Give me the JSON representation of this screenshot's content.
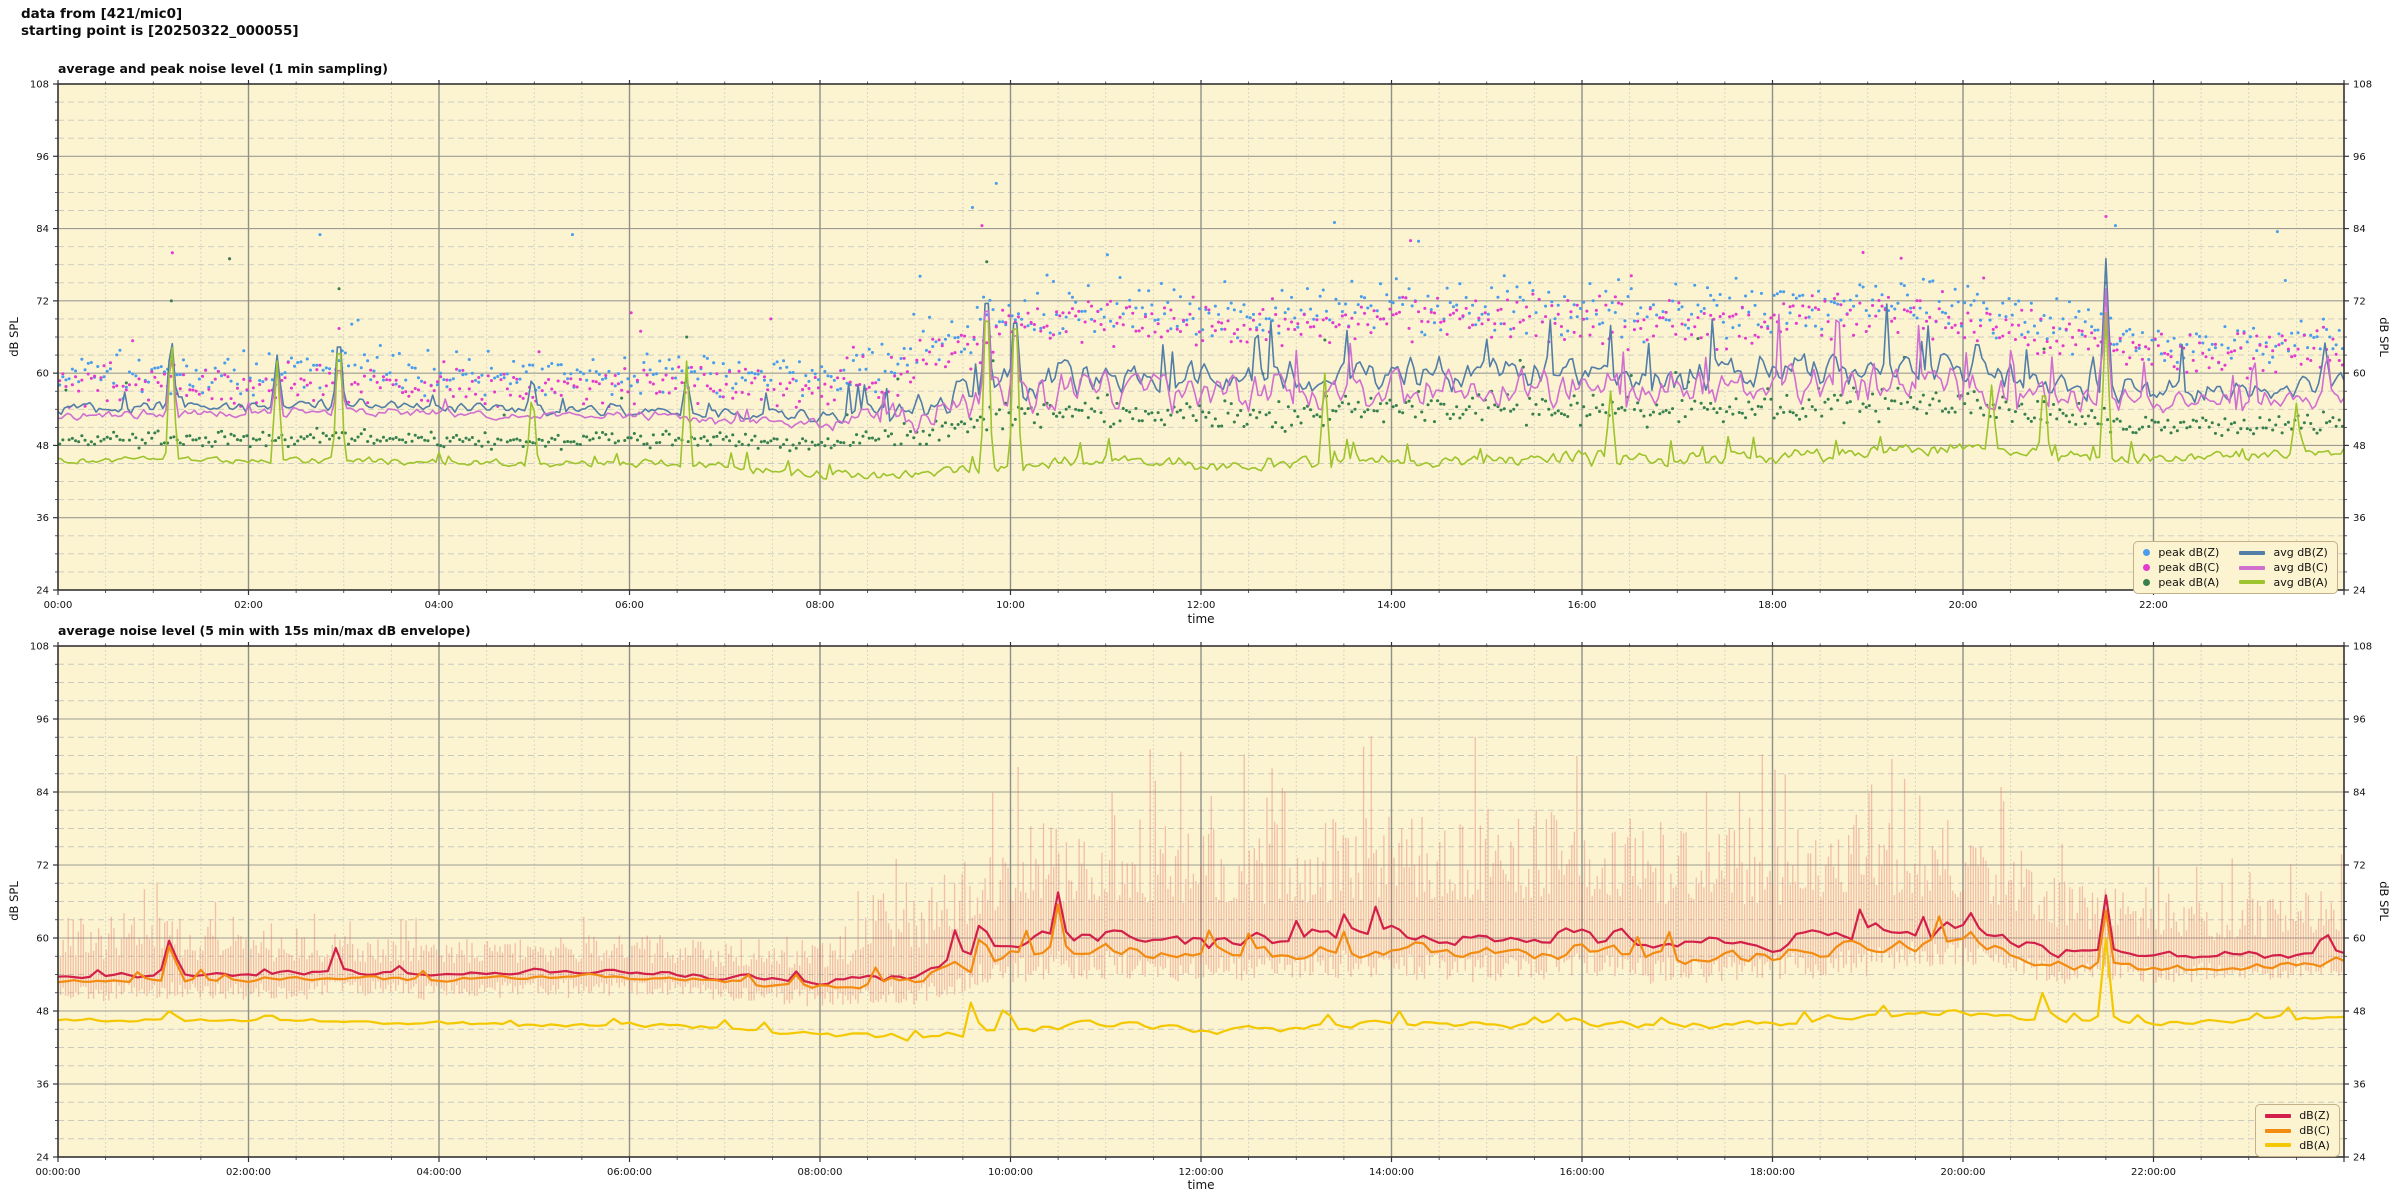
{
  "header": {
    "line1": "data from [421/mic0]",
    "line2": "starting point is [20250322_000055]"
  },
  "palette": {
    "plot_background": "#fcf3d0",
    "grid_major": "#9c9c94",
    "grid_minor": "#c9c9bf",
    "spine": "#333333"
  },
  "chart_data": [
    {
      "type": "scatter",
      "title": "average and peak noise level (1 min sampling)",
      "xlabel": "time",
      "ylabel": "dB SPL",
      "ylabel_right": "dB SPL",
      "ylim": [
        24,
        108
      ],
      "yticks": [
        24,
        36,
        48,
        60,
        72,
        84,
        96,
        108
      ],
      "y_minor_step": 3,
      "xlim_hours": [
        0,
        24
      ],
      "xtick_labels": [
        "00:00",
        "02:00",
        "04:00",
        "06:00",
        "08:00",
        "10:00",
        "12:00",
        "14:00",
        "16:00",
        "18:00",
        "20:00",
        "22:00"
      ],
      "xtick_step_hours": 2,
      "x_minor_step_hours": 0.5,
      "grid": "major solid + minor dashed",
      "legend_position": "lower right",
      "anchor_hours": [
        0,
        1,
        2,
        3,
        4,
        5,
        6,
        7,
        8,
        9,
        10,
        11,
        12,
        13,
        14,
        15,
        16,
        17,
        18,
        19,
        20,
        21,
        22,
        23,
        24
      ],
      "spike_width_hours": 0.06,
      "scatter_series": [
        {
          "name": "peak dB(Z)",
          "color": "#4a9ded",
          "marker": "dot",
          "mean": [
            60,
            60,
            60,
            61,
            60,
            59.5,
            60,
            60,
            59,
            63,
            70,
            71,
            70,
            70,
            71,
            71,
            71,
            70,
            71,
            72,
            71,
            68,
            65,
            65,
            66
          ],
          "spread": [
            4.5,
            4.5,
            4.5,
            4.5,
            4.5,
            4.5,
            4.5,
            4.5,
            4.5,
            5.5,
            5.5,
            5.5,
            5.5,
            5.5,
            5.5,
            5.5,
            5.5,
            5.5,
            5.5,
            5.5,
            5.5,
            5,
            4.5,
            4.5,
            4.5
          ],
          "outliers": [
            [
              2.75,
              83
            ],
            [
              5.4,
              83
            ],
            [
              9.6,
              87.5
            ],
            [
              9.85,
              91.5
            ],
            [
              13.4,
              85
            ],
            [
              21.6,
              84.5
            ],
            [
              23.3,
              83.5
            ]
          ]
        },
        {
          "name": "peak dB(C)",
          "color": "#e33bcf",
          "marker": "dot",
          "mean": [
            58,
            58,
            58,
            59,
            58,
            57.5,
            58,
            58,
            57,
            61,
            68,
            69,
            68,
            68,
            69,
            69,
            69,
            68,
            69,
            70,
            69,
            66,
            63,
            63,
            64
          ],
          "spread": [
            4.2,
            4.2,
            4.2,
            4.2,
            4.2,
            4.2,
            4.2,
            4.2,
            4.2,
            5,
            5,
            5,
            5,
            5,
            5,
            5,
            5,
            5,
            5,
            5,
            5,
            4.5,
            4.2,
            4.2,
            4.2
          ],
          "outliers": [
            [
              1.2,
              80
            ],
            [
              1.8,
              79
            ],
            [
              9.7,
              84.5
            ],
            [
              14.2,
              82
            ],
            [
              21.5,
              86
            ]
          ]
        },
        {
          "name": "peak dB(A)",
          "color": "#37814f",
          "marker": "dot",
          "mean": [
            49,
            49,
            49,
            49.5,
            49,
            48.5,
            49,
            49,
            48,
            50,
            53,
            54,
            53,
            53,
            54,
            54,
            54,
            53.5,
            54,
            55,
            55,
            53,
            51,
            51,
            52
          ],
          "spread": [
            1.6,
            1.6,
            1.6,
            1.8,
            1.6,
            1.6,
            1.8,
            1.8,
            1.8,
            2.5,
            3.2,
            3.2,
            3.2,
            3.2,
            3.2,
            3.2,
            3.2,
            3.2,
            3.2,
            3.2,
            3.2,
            2.8,
            2,
            2,
            2
          ],
          "outliers": [
            [
              1.19,
              72
            ],
            [
              1.8,
              79
            ],
            [
              2.95,
              74
            ],
            [
              6.6,
              66
            ],
            [
              9.75,
              78.5
            ],
            [
              13.3,
              65.5
            ],
            [
              20.85,
              64
            ],
            [
              21.5,
              75
            ]
          ]
        }
      ],
      "line_series": [
        {
          "name": "avg dB(Z)",
          "color": "#527ea8",
          "mean": [
            54,
            54.3,
            54.4,
            54.8,
            54.4,
            54,
            54,
            53.4,
            52.8,
            54,
            58.6,
            59.6,
            59,
            59,
            60,
            60,
            60,
            59.4,
            60,
            61,
            60.4,
            58,
            57,
            57.2,
            58.2
          ],
          "noise": [
            1.1,
            1.1,
            1.1,
            1.1,
            1.1,
            1.1,
            1.2,
            1.2,
            1.5,
            2.6,
            3.4,
            3.4,
            3.4,
            3.4,
            3.4,
            3.4,
            3.4,
            3.4,
            3.4,
            3.4,
            3.4,
            3,
            2.4,
            2.4,
            2.4
          ],
          "spikes": [
            [
              1.19,
              67
            ],
            [
              2.3,
              63
            ],
            [
              2.95,
              68
            ],
            [
              4.98,
              60
            ],
            [
              6.6,
              59.5
            ],
            [
              9.75,
              77
            ],
            [
              10.05,
              72
            ],
            [
              20.15,
              66.5
            ],
            [
              21.5,
              79
            ],
            [
              23.8,
              65
            ]
          ]
        },
        {
          "name": "avg dB(C)",
          "color": "#d06fd0",
          "mean": [
            52.9,
            53.2,
            53.3,
            53.7,
            53.3,
            52.9,
            52.9,
            52.3,
            51.6,
            52.8,
            56.2,
            57.2,
            56.6,
            56.6,
            57.6,
            57.6,
            57.6,
            57,
            57.6,
            58.6,
            58,
            55.6,
            55,
            55.3,
            56.4
          ],
          "noise": [
            0.9,
            0.9,
            0.9,
            0.9,
            0.9,
            0.9,
            1,
            1,
            1.5,
            3,
            4,
            4,
            4,
            4,
            4,
            4,
            4,
            4,
            4,
            4,
            4,
            3.4,
            2.4,
            2.4,
            2.4
          ],
          "spikes": [
            [
              1.19,
              64
            ],
            [
              2.3,
              61
            ],
            [
              2.95,
              63
            ],
            [
              9.75,
              76
            ],
            [
              10.05,
              70
            ],
            [
              21.5,
              74
            ]
          ]
        },
        {
          "name": "avg dB(A)",
          "color": "#9dc42c",
          "mean": [
            45.6,
            45.6,
            45.6,
            45.6,
            45.2,
            45,
            45,
            44.6,
            43.2,
            43,
            44.6,
            45.6,
            44.6,
            45,
            45.6,
            45.6,
            46,
            45.6,
            46,
            47,
            47.6,
            46,
            46,
            46.4,
            47
          ],
          "noise": [
            0.7,
            0.7,
            0.7,
            0.7,
            0.7,
            0.7,
            0.8,
            0.8,
            1,
            1.1,
            1.4,
            1.4,
            1.4,
            1.4,
            1.4,
            1.4,
            1.4,
            1.4,
            1.4,
            1.4,
            1.4,
            1.2,
            1,
            1,
            1
          ],
          "spikes": [
            [
              1.19,
              68
            ],
            [
              2.3,
              62
            ],
            [
              2.95,
              70
            ],
            [
              4.98,
              58
            ],
            [
              6.6,
              62
            ],
            [
              9.75,
              78
            ],
            [
              10.05,
              76
            ],
            [
              13.3,
              60
            ],
            [
              16.3,
              57
            ],
            [
              20.3,
              58
            ],
            [
              20.85,
              60
            ],
            [
              21.5,
              70
            ],
            [
              23.5,
              55
            ]
          ]
        }
      ]
    },
    {
      "type": "line",
      "title": "average noise level (5 min with 15s min/max dB envelope)",
      "xlabel": "time",
      "ylabel": "dB SPL",
      "ylabel_right": "dB SPL",
      "ylim": [
        24,
        108
      ],
      "yticks": [
        24,
        36,
        48,
        60,
        72,
        84,
        96,
        108
      ],
      "y_minor_step": 3,
      "xlim_hours": [
        0,
        24
      ],
      "xtick_labels": [
        "00:00:00",
        "02:00:00",
        "04:00:00",
        "06:00:00",
        "08:00:00",
        "10:00:00",
        "12:00:00",
        "14:00:00",
        "16:00:00",
        "18:00:00",
        "20:00:00",
        "22:00:00"
      ],
      "xtick_step_hours": 2,
      "x_minor_step_hours": 0.5,
      "grid": "major solid + minor dashed",
      "legend_position": "lower right",
      "anchor_hours": [
        0,
        1,
        2,
        3,
        4,
        5,
        6,
        7,
        8,
        9,
        10,
        11,
        12,
        13,
        14,
        15,
        16,
        17,
        18,
        19,
        20,
        21,
        22,
        23,
        24
      ],
      "spike_width_hours": 0.09,
      "band": {
        "name": "15s min/max dB envelope",
        "color": "rgba(223,108,96,0.38)",
        "upper_offset": [
          10,
          10,
          6.5,
          6.5,
          5.5,
          5.5,
          6.5,
          6.5,
          7,
          14,
          20,
          20,
          19,
          20,
          21,
          21,
          21,
          20,
          20,
          20,
          18,
          14,
          10,
          10,
          11
        ],
        "lower_offset": [
          -4,
          -4,
          -4,
          -4,
          -4,
          -4,
          -4,
          -4,
          -4,
          -5,
          -7,
          -7,
          -7,
          -7,
          -7,
          -7,
          -7,
          -7,
          -7,
          -7,
          -6,
          -5,
          -4,
          -4,
          -4
        ]
      },
      "line_series": [
        {
          "name": "dB(Z)",
          "color": "#d2204a",
          "mean": [
            53.6,
            54,
            54,
            54.5,
            54,
            54.5,
            54.5,
            53.6,
            53,
            54,
            59.6,
            60.4,
            59.6,
            60,
            60.5,
            60,
            60.5,
            59.5,
            59.5,
            61,
            61.5,
            57.6,
            57,
            57,
            58
          ],
          "noise": [
            0.5,
            0.5,
            0.5,
            0.6,
            0.5,
            0.5,
            0.6,
            0.6,
            0.8,
            1.4,
            1.8,
            1.8,
            1.8,
            1.8,
            1.8,
            1.8,
            1.8,
            1.8,
            1.8,
            1.8,
            1.8,
            1.4,
            0.9,
            0.9,
            0.9
          ],
          "spikes": [
            [
              1.19,
              61.5
            ],
            [
              2.92,
              58.5
            ],
            [
              9.7,
              64.5
            ],
            [
              10.5,
              67.5
            ],
            [
              20.1,
              64
            ],
            [
              21.5,
              67
            ],
            [
              23.8,
              62
            ]
          ]
        },
        {
          "name": "dB(C)",
          "color": "#f28b10",
          "mean": [
            52.8,
            53.2,
            53.2,
            53.7,
            53.2,
            53.7,
            53.7,
            52.8,
            52,
            53,
            57.2,
            58,
            57.2,
            57.6,
            58,
            57.6,
            58,
            57,
            57,
            58.6,
            59,
            55.6,
            55,
            55,
            56.2
          ],
          "noise": [
            0.5,
            0.5,
            0.5,
            0.6,
            0.5,
            0.5,
            0.6,
            0.6,
            0.8,
            1.3,
            1.7,
            1.7,
            1.7,
            1.7,
            1.7,
            1.7,
            1.7,
            1.7,
            1.7,
            1.7,
            1.7,
            1.3,
            0.9,
            0.9,
            0.9
          ],
          "spikes": [
            [
              1.19,
              60.5
            ],
            [
              9.7,
              62
            ],
            [
              10.5,
              65.5
            ],
            [
              20.1,
              61.5
            ],
            [
              21.5,
              64.5
            ]
          ]
        },
        {
          "name": "dB(A)",
          "color": "#f4c800",
          "mean": [
            46.5,
            46.5,
            46.3,
            46.3,
            46,
            45.8,
            45.8,
            45.2,
            44,
            43.6,
            45,
            46,
            44.8,
            45.2,
            45.8,
            45.8,
            46.2,
            45.8,
            46.2,
            47.2,
            47.8,
            46.2,
            46,
            46.5,
            47
          ],
          "noise": [
            0.4,
            0.4,
            0.4,
            0.4,
            0.4,
            0.4,
            0.5,
            0.5,
            0.6,
            0.7,
            0.8,
            0.8,
            0.8,
            0.8,
            0.8,
            0.8,
            0.8,
            0.8,
            0.8,
            0.8,
            0.8,
            0.7,
            0.5,
            0.5,
            0.5
          ],
          "spikes": [
            [
              1.19,
              48.5
            ],
            [
              9.6,
              50.5
            ],
            [
              9.95,
              50
            ],
            [
              20.85,
              52
            ],
            [
              21.5,
              60
            ],
            [
              23.4,
              49
            ]
          ]
        }
      ]
    }
  ]
}
